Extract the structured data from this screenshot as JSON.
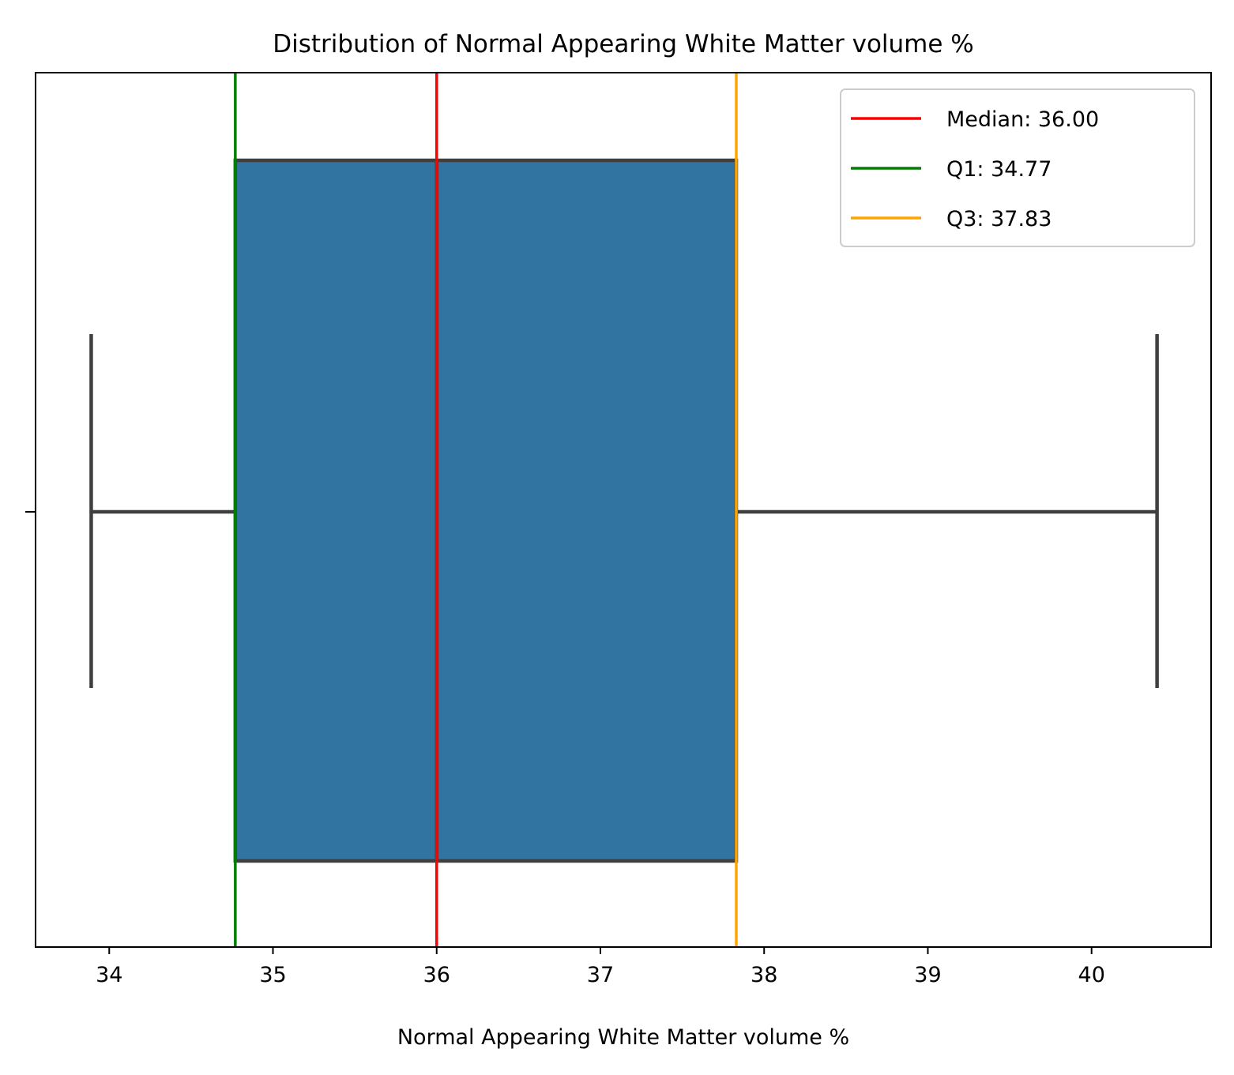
{
  "chart_data": {
    "type": "box",
    "title": "Distribution of Normal Appearing White Matter volume %",
    "xlabel": "Normal Appearing White Matter volume %",
    "ylabel": "",
    "xlim": [
      33.55,
      40.73
    ],
    "xticks": [
      34,
      35,
      36,
      37,
      38,
      39,
      40
    ],
    "xtick_labels": [
      "34",
      "35",
      "36",
      "37",
      "38",
      "39",
      "40"
    ],
    "grid": false,
    "box": {
      "whisker_low": 33.89,
      "q1": 34.77,
      "median": 36.0,
      "q3": 37.83,
      "whisker_high": 40.4,
      "fill_color": "#3274a1",
      "line_color": "#3f3f3f"
    },
    "reference_lines": [
      {
        "name": "Median",
        "label": "Median: 36.00",
        "value": 36.0,
        "color": "#ff0000"
      },
      {
        "name": "Q1",
        "label": "Q1: 34.77",
        "value": 34.77,
        "color": "#008000"
      },
      {
        "name": "Q3",
        "label": "Q3: 37.83",
        "value": 37.83,
        "color": "#ffa500"
      }
    ],
    "legend": {
      "placement": "top-right",
      "entries": [
        "Median: 36.00",
        "Q1: 34.77",
        "Q3: 37.83"
      ]
    }
  }
}
